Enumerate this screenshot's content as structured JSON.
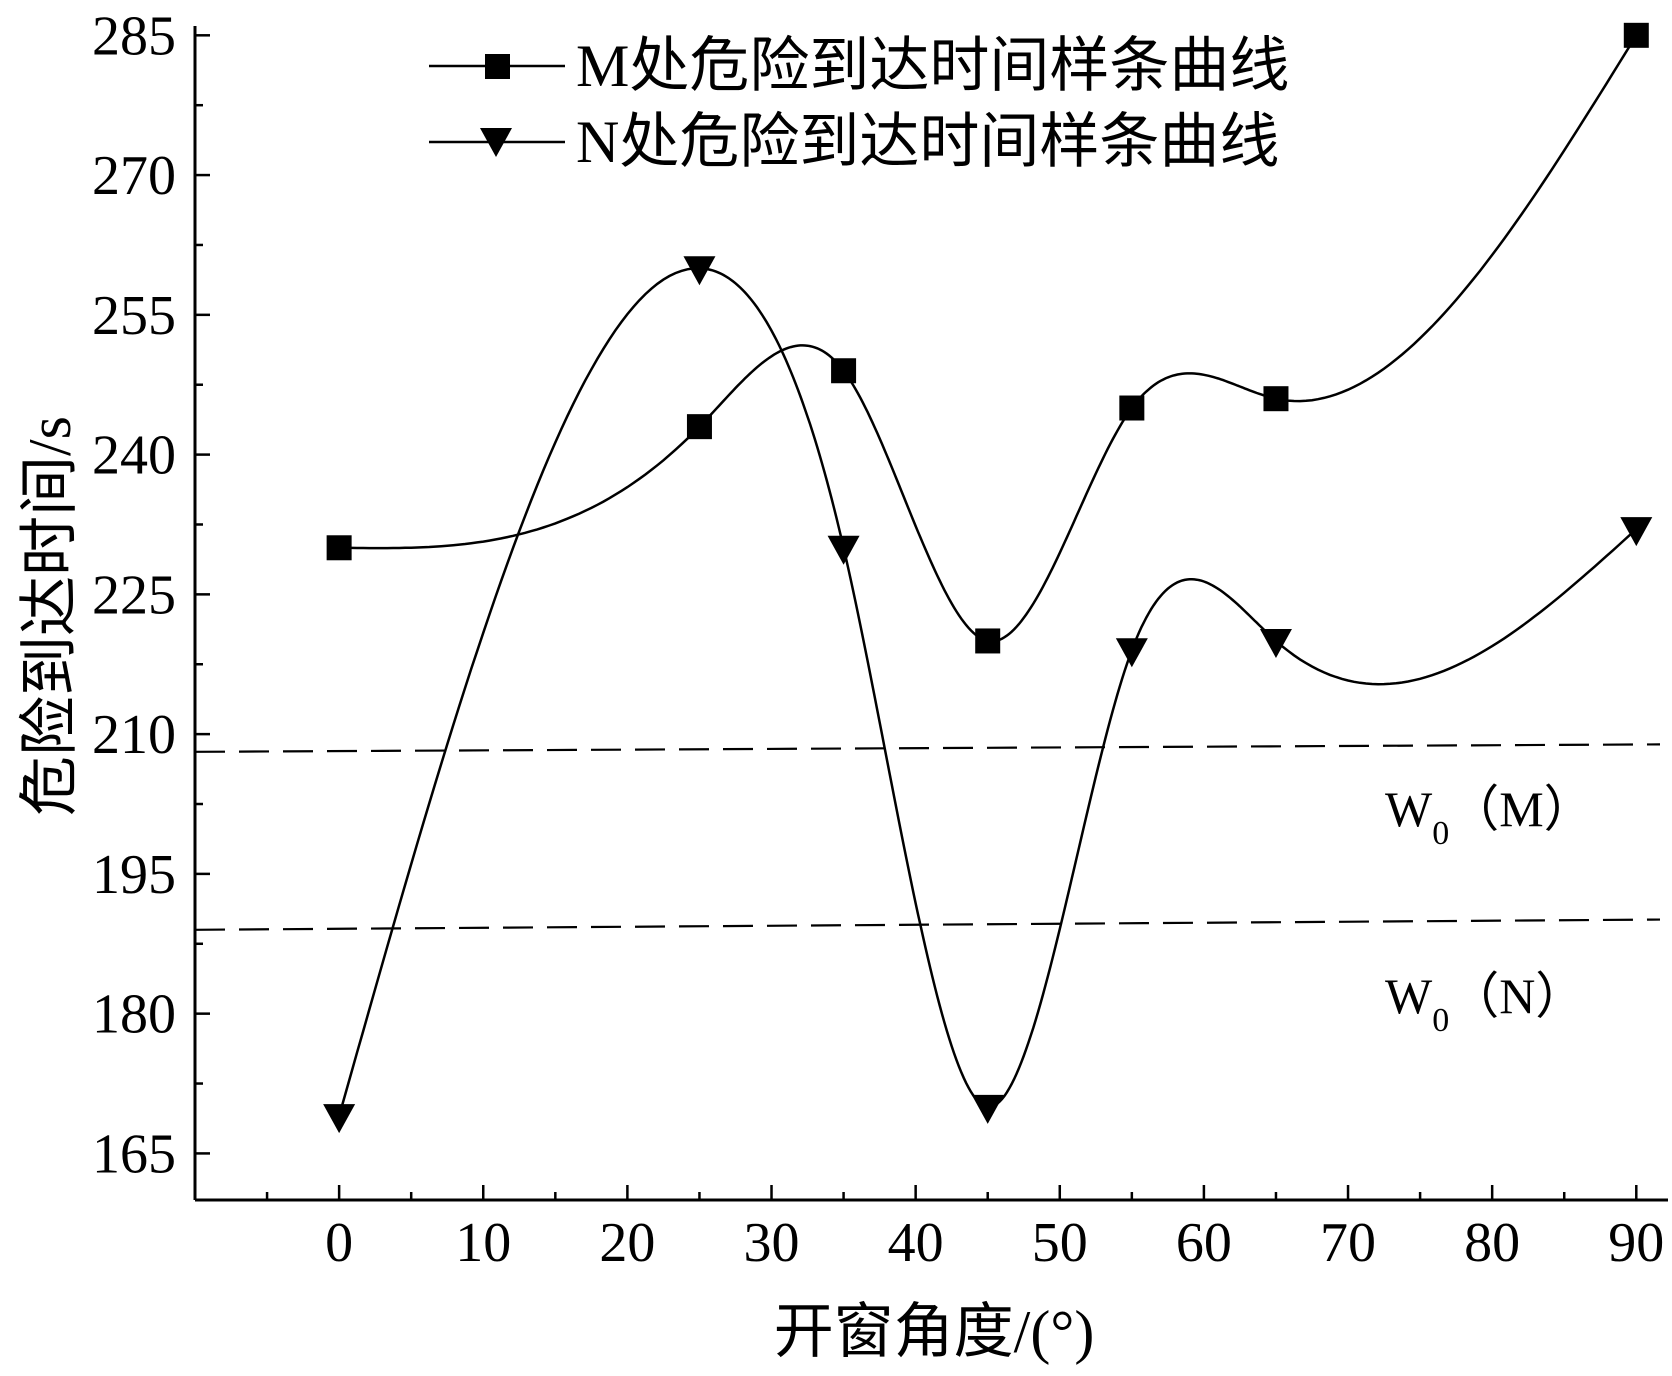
{
  "chart_data": {
    "type": "line",
    "title": "",
    "xlabel": "开窗角度/(°)",
    "ylabel": "危险到达时间/s",
    "xlim": [
      -10,
      92.2
    ],
    "ylim": [
      160,
      286
    ],
    "x_ticks": [
      0,
      10,
      20,
      30,
      40,
      50,
      60,
      70,
      80,
      90
    ],
    "y_ticks": [
      165,
      180,
      195,
      210,
      225,
      240,
      255,
      270,
      285
    ],
    "grid": false,
    "legend": "top-center",
    "series": [
      {
        "name": "M处危险到达时间样条曲线",
        "marker": "square",
        "curve": "spline",
        "x": [
          0,
          25,
          35,
          45,
          55,
          65,
          90
        ],
        "y": [
          230,
          243,
          249,
          220,
          245,
          246,
          285
        ]
      },
      {
        "name": "N处危险到达时间样条曲线",
        "marker": "triangle-down",
        "curve": "spline",
        "x": [
          0,
          25,
          35,
          45,
          55,
          65,
          90
        ],
        "y": [
          169,
          260,
          230,
          170,
          219,
          220,
          232
        ]
      }
    ],
    "reference_lines": [
      {
        "style": "dashed",
        "y_start": 208.1,
        "y_end": 208.9,
        "label_main": "W",
        "label_sub": "0",
        "label_suffix": "（M）"
      },
      {
        "style": "dashed",
        "y_start": 189.0,
        "y_end": 190.1,
        "label_main": "W",
        "label_sub": "0",
        "label_suffix": "（N）"
      }
    ],
    "colors": {
      "line": "#000000",
      "background": "#ffffff"
    }
  }
}
